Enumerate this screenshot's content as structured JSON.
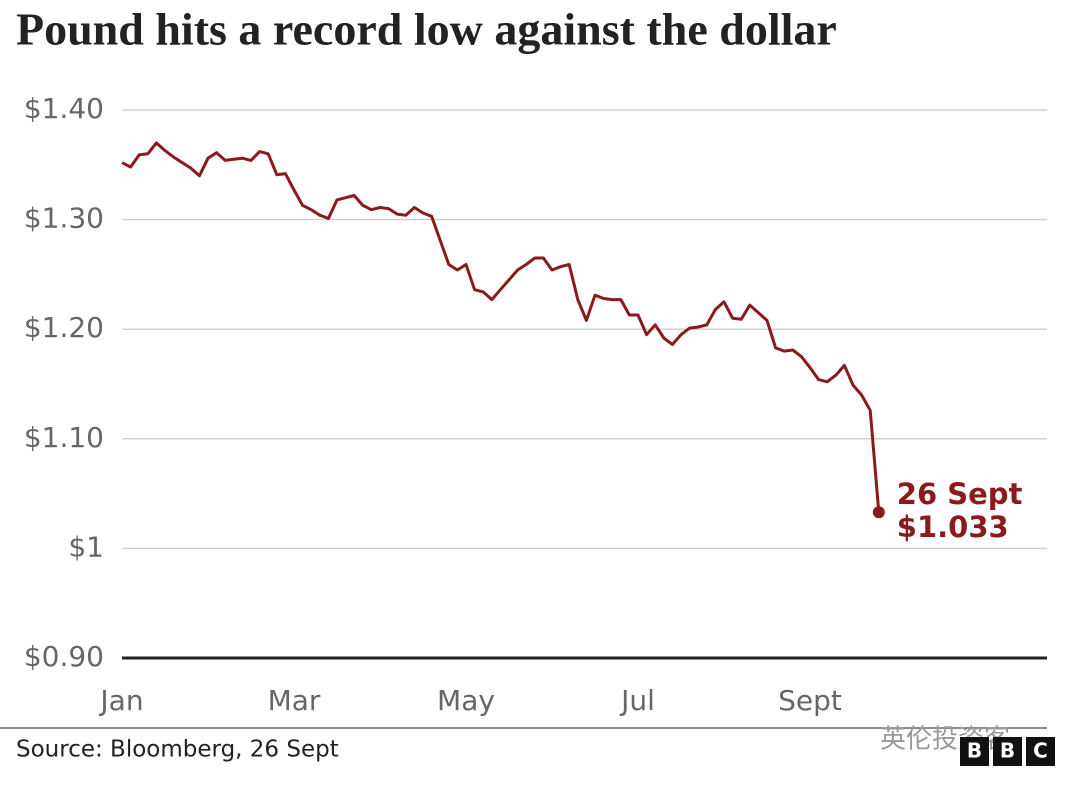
{
  "chart_data": {
    "type": "line",
    "title": "Pound hits a record low against the dollar",
    "categories": [
      "Jan",
      null,
      null,
      null,
      null,
      null,
      null,
      null,
      null,
      null,
      null,
      null,
      null,
      null,
      null,
      null,
      null,
      null,
      null,
      null,
      "Mar",
      null,
      null,
      null,
      null,
      null,
      null,
      null,
      null,
      null,
      null,
      null,
      null,
      null,
      null,
      null,
      null,
      null,
      null,
      null,
      "May",
      null,
      null,
      null,
      null,
      null,
      null,
      null,
      null,
      null,
      null,
      null,
      null,
      null,
      null,
      null,
      null,
      null,
      null,
      null,
      "Jul",
      null,
      null,
      null,
      null,
      null,
      null,
      null,
      null,
      null,
      null,
      null,
      null,
      null,
      null,
      null,
      null,
      null,
      null,
      null,
      "Sept",
      null,
      null,
      null,
      null,
      null,
      null,
      null,
      null
    ],
    "values": [
      1.352,
      1.348,
      1.359,
      1.36,
      1.37,
      1.363,
      1.357,
      1.352,
      1.347,
      1.34,
      1.356,
      1.361,
      1.354,
      1.355,
      1.356,
      1.354,
      1.362,
      1.36,
      1.341,
      1.342,
      1.327,
      1.313,
      1.309,
      1.304,
      1.301,
      1.318,
      1.32,
      1.322,
      1.313,
      1.309,
      1.311,
      1.31,
      1.305,
      1.304,
      1.311,
      1.306,
      1.303,
      1.281,
      1.259,
      1.254,
      1.259,
      1.236,
      1.234,
      1.227,
      1.236,
      1.245,
      1.254,
      1.259,
      1.265,
      1.265,
      1.254,
      1.257,
      1.259,
      1.227,
      1.208,
      1.231,
      1.228,
      1.227,
      1.227,
      1.213,
      1.213,
      1.195,
      1.204,
      1.192,
      1.186,
      1.195,
      1.201,
      1.202,
      1.204,
      1.218,
      1.225,
      1.21,
      1.209,
      1.222,
      1.215,
      1.208,
      1.183,
      1.18,
      1.181,
      1.175,
      1.165,
      1.154,
      1.152,
      1.158,
      1.167,
      1.149,
      1.14,
      1.126,
      1.033
    ],
    "value_labels": [
      null,
      null,
      null,
      null,
      null,
      null,
      null,
      null,
      null,
      null,
      null,
      null,
      null,
      null,
      null,
      null,
      null,
      null,
      null,
      null,
      null,
      null,
      null,
      null,
      null,
      null,
      null,
      null,
      null,
      null,
      null,
      null,
      null,
      null,
      null,
      null,
      null,
      null,
      null,
      null,
      null,
      null,
      null,
      null,
      null,
      null,
      null,
      null,
      null,
      null,
      null,
      null,
      null,
      null,
      null,
      null,
      null,
      null,
      null,
      null,
      null,
      null,
      null,
      null,
      null,
      null,
      null,
      null,
      null,
      null,
      null,
      null,
      null,
      null,
      null,
      null,
      null,
      null,
      null,
      null,
      null,
      null,
      null,
      null,
      null,
      null,
      null,
      null,
      "$1.033"
    ],
    "annotation": "26 Sept",
    "color": "#8b1a1a",
    "ylim": [
      0.9,
      1.4
    ],
    "yticks": [
      {
        "value": 0.9,
        "label": "$0.90"
      },
      {
        "value": 1,
        "label": "$1"
      },
      {
        "value": 1.1,
        "label": "$1.10"
      },
      {
        "value": 1.2,
        "label": "$1.20"
      },
      {
        "value": 1.3,
        "label": "$1.30"
      },
      {
        "value": 1.4,
        "label": "$1.40"
      }
    ],
    "grid": true,
    "source": "Source: Bloomberg, 26 Sept"
  },
  "watermark": "英伦投资客",
  "logo": [
    "B",
    "B",
    "C"
  ]
}
